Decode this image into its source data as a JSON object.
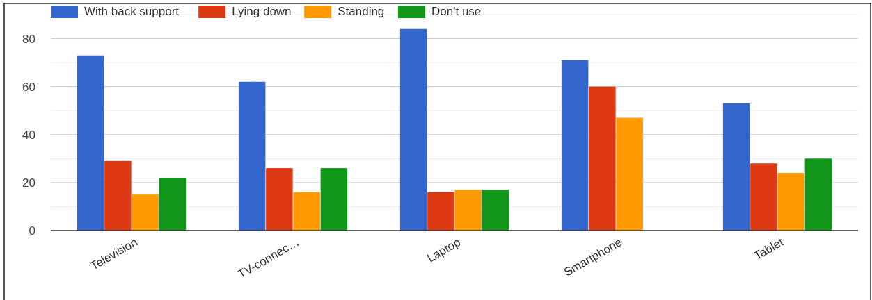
{
  "chart_data": {
    "type": "bar",
    "categories": [
      "Television",
      "TV-connec…",
      "Laptop",
      "Smartphone",
      "Tablet"
    ],
    "series": [
      {
        "name": "With back support",
        "color": "#3366cc",
        "values": [
          73,
          62,
          84,
          71,
          53
        ]
      },
      {
        "name": "Lying down",
        "color": "#dc3912",
        "values": [
          29,
          26,
          16,
          60,
          28
        ]
      },
      {
        "name": "Standing",
        "color": "#ff9900",
        "values": [
          15,
          16,
          17,
          47,
          24
        ]
      },
      {
        "name": "Don't use",
        "color": "#109618",
        "values": [
          22,
          26,
          17,
          null,
          30
        ]
      }
    ],
    "ylim": [
      0,
      90
    ],
    "yticks": [
      0,
      {
        "value": 10,
        "label": null
      },
      20,
      {
        "value": 30,
        "label": null
      },
      40,
      {
        "value": 50,
        "label": null
      },
      60,
      {
        "value": 70,
        "label": null
      },
      80,
      {
        "value": 90,
        "label": null
      }
    ],
    "grid": true,
    "legend": "top left"
  }
}
